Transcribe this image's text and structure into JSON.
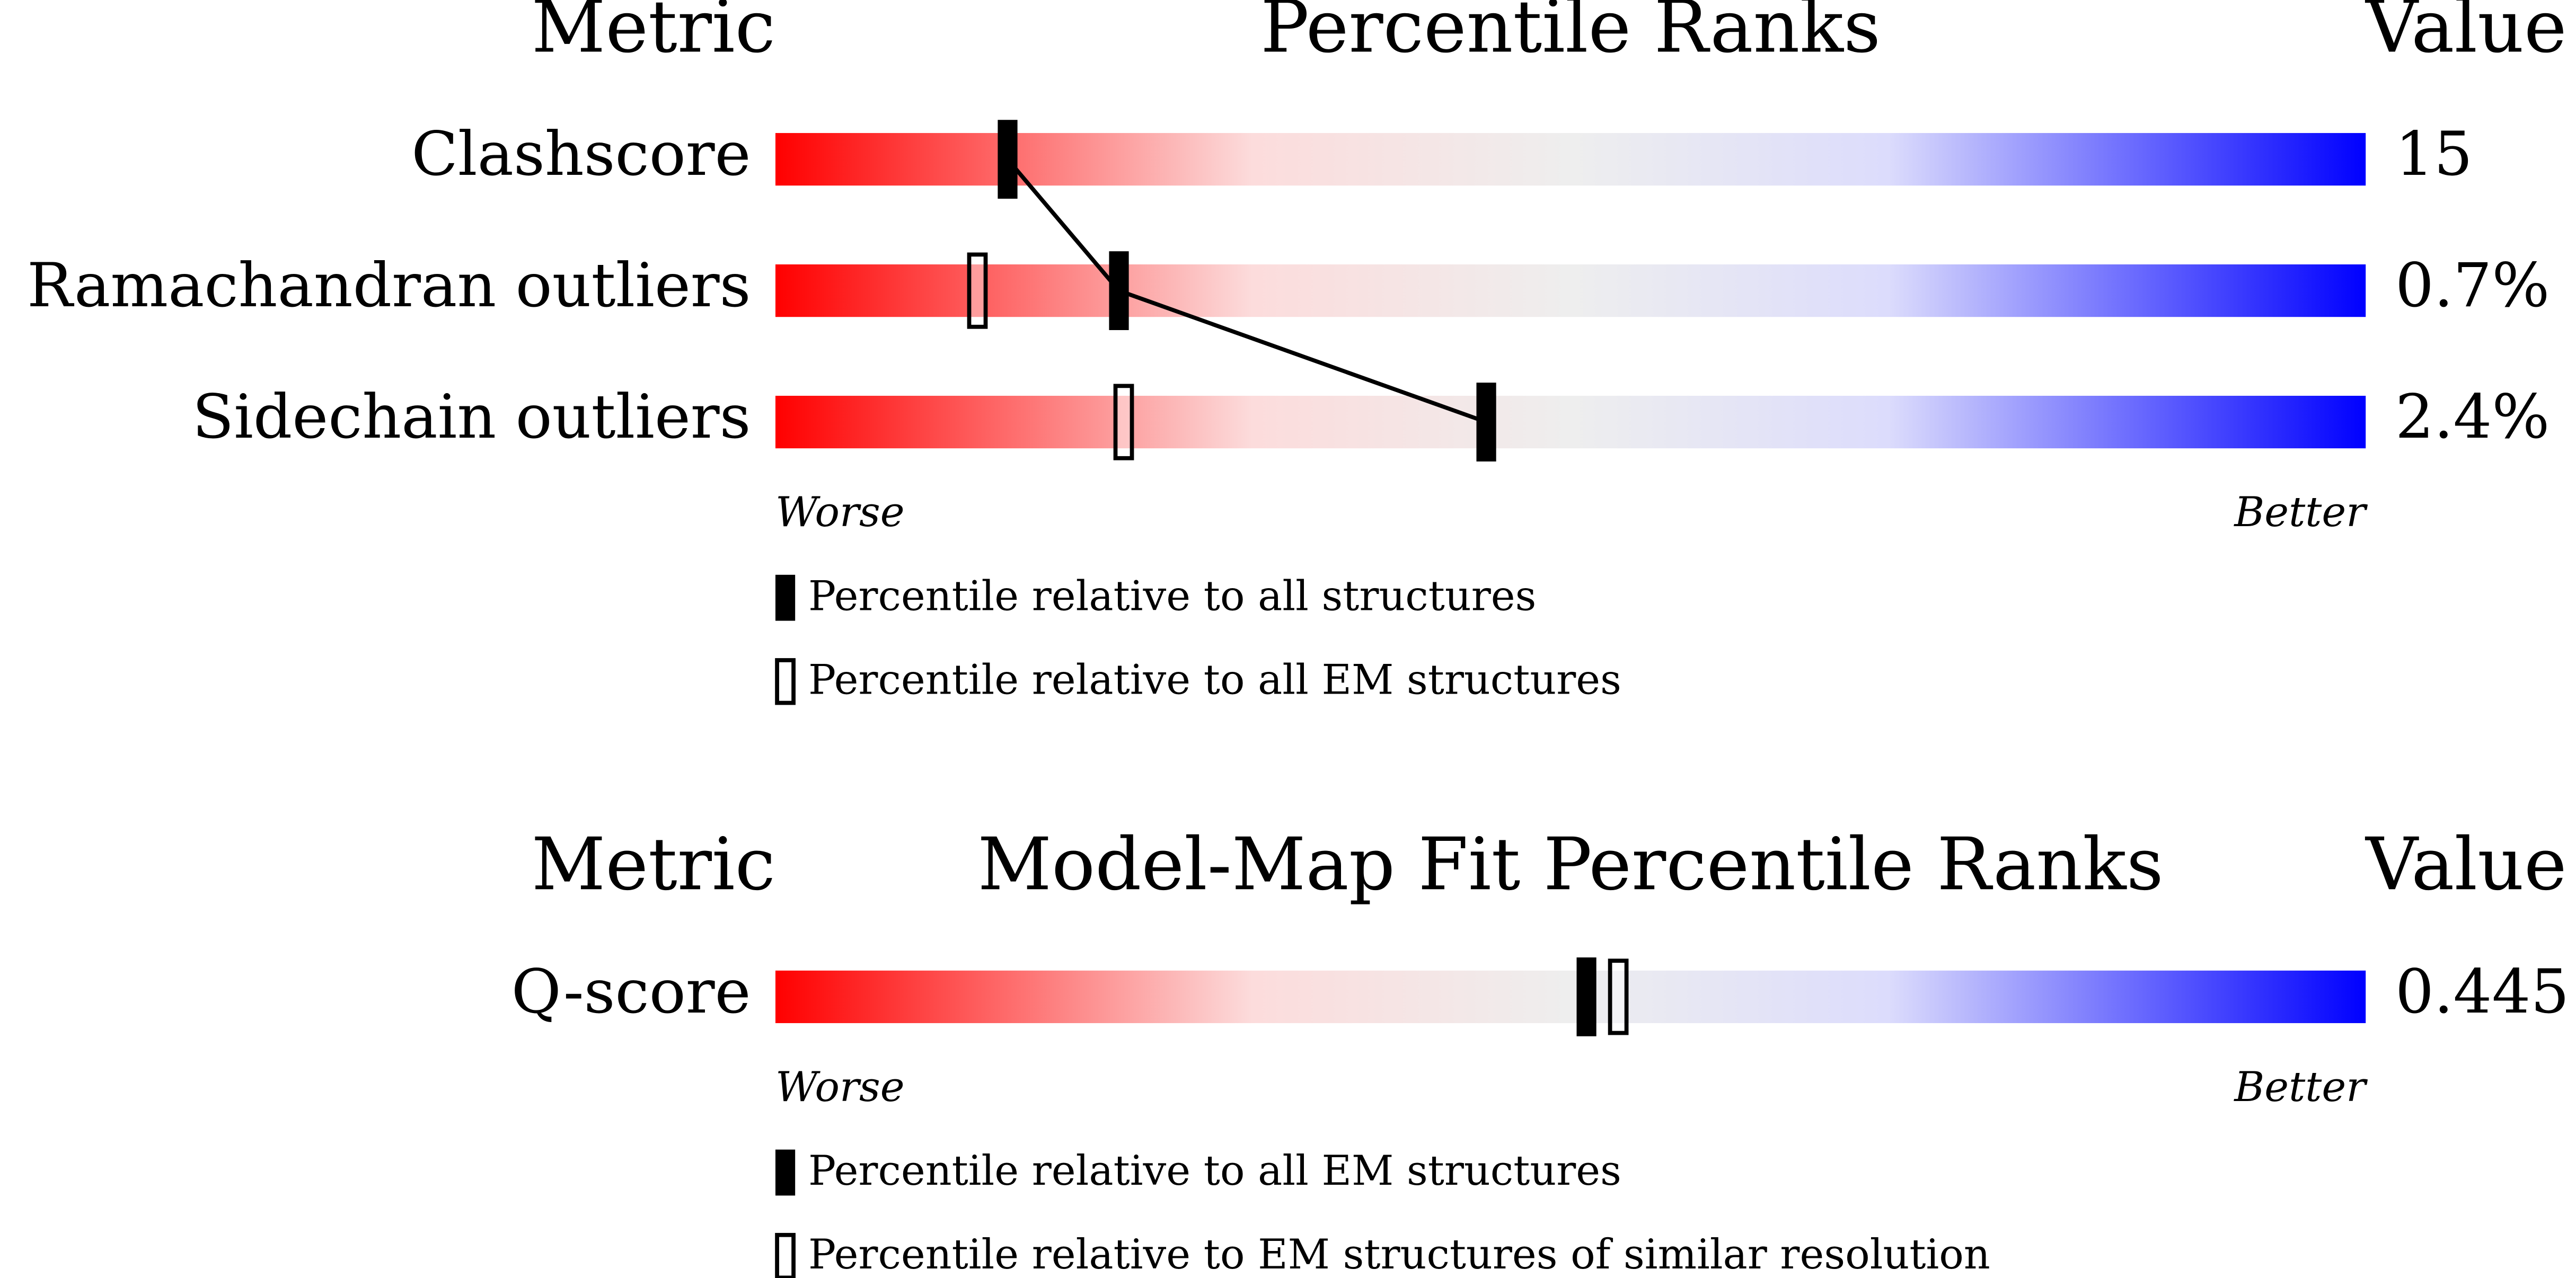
{
  "panels": [
    {
      "metric_header": "Metric",
      "title": "Percentile Ranks",
      "value_header": "Value",
      "rows": [
        {
          "metric": "Clashscore",
          "value": "15",
          "percentile_filled": 14.6
        },
        {
          "metric": "Ramachandran outliers",
          "value": "0.7%",
          "percentile_filled": 21.6,
          "percentile_open": 12.7
        },
        {
          "metric": "Sidechain outliers",
          "value": "2.4%",
          "percentile_filled": 44.7,
          "percentile_open": 21.9
        }
      ],
      "worse": "Worse",
      "better": "Better",
      "legend_filled": "Percentile relative to all structures",
      "legend_open": "Percentile relative to all EM structures"
    },
    {
      "metric_header": "Metric",
      "title": "Model-Map Fit Percentile Ranks",
      "value_header": "Value",
      "rows": [
        {
          "metric": "Q-score",
          "value": "0.445",
          "percentile_filled": 51.0,
          "percentile_open": 53.0
        }
      ],
      "worse": "Worse",
      "better": "Better",
      "legend_filled": "Percentile relative to all EM structures",
      "legend_open": "Percentile relative to EM structures of similar resolution"
    }
  ]
}
